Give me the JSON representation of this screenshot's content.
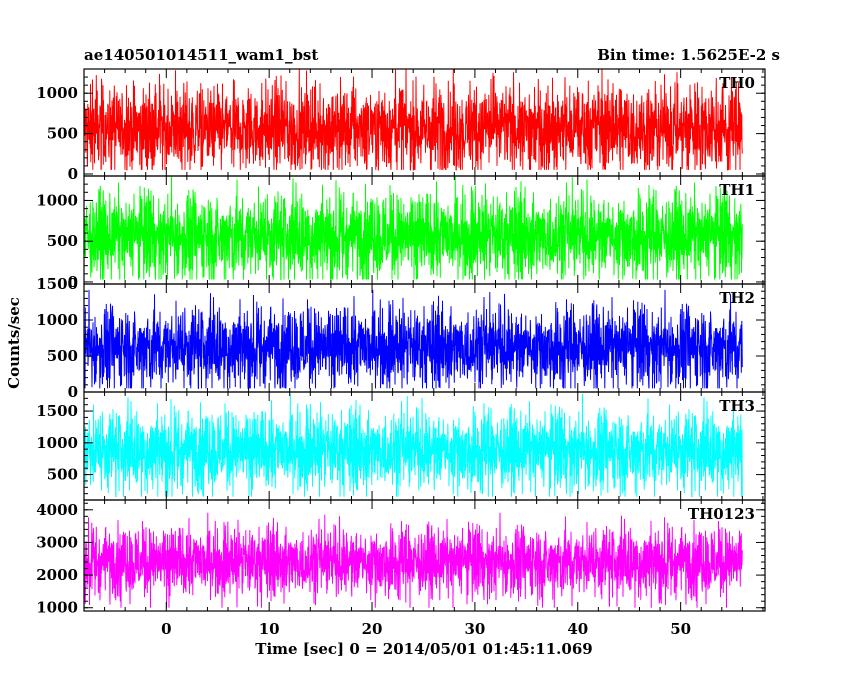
{
  "header": {
    "title": "ae140501014511_wam1_bst",
    "bin_time": "Bin time: 1.5625E-2 s"
  },
  "chart_data": {
    "type": "line",
    "ylabel": "Counts/sec",
    "xlabel": "Time [sec] 0 = 2014/05/01 01:45:11.069",
    "xlim": [
      -8.0,
      58.2
    ],
    "data_x_range": [
      -8.0,
      56.0
    ],
    "x_ticks": [
      0,
      10,
      20,
      30,
      40,
      50
    ],
    "panels": [
      {
        "name": "TH0",
        "color": "#ff0000",
        "ylim": [
          -25,
          1300
        ],
        "y_ticks": [
          0,
          500,
          1000
        ],
        "band_mean": 560,
        "band_low_typical": 150,
        "band_high_typical": 1000,
        "min": 50,
        "max": 1300
      },
      {
        "name": "TH1",
        "color": "#00ff00",
        "ylim": [
          -25,
          1300
        ],
        "y_ticks": [
          0,
          500,
          1000
        ],
        "band_mean": 560,
        "band_low_typical": 150,
        "band_high_typical": 1000,
        "min": 30,
        "max": 1300
      },
      {
        "name": "TH2",
        "color": "#0000ff",
        "ylim": [
          0,
          1500
        ],
        "y_ticks": [
          0,
          500,
          1000,
          1500
        ],
        "band_mean": 620,
        "band_low_typical": 200,
        "band_high_typical": 1100,
        "min": 50,
        "max": 1500
      },
      {
        "name": "TH3",
        "color": "#00ffff",
        "ylim": [
          100,
          1800
        ],
        "y_ticks": [
          500,
          1000,
          1500
        ],
        "band_mean": 880,
        "band_low_typical": 400,
        "band_high_typical": 1400,
        "min": 150,
        "max": 1800
      },
      {
        "name": "TH0123",
        "color": "#ff00ff",
        "ylim": [
          900,
          4300
        ],
        "y_ticks": [
          1000,
          2000,
          3000,
          4000
        ],
        "band_mean": 2400,
        "band_low_typical": 1600,
        "band_high_typical": 3300,
        "min": 1000,
        "max": 4200
      }
    ]
  }
}
